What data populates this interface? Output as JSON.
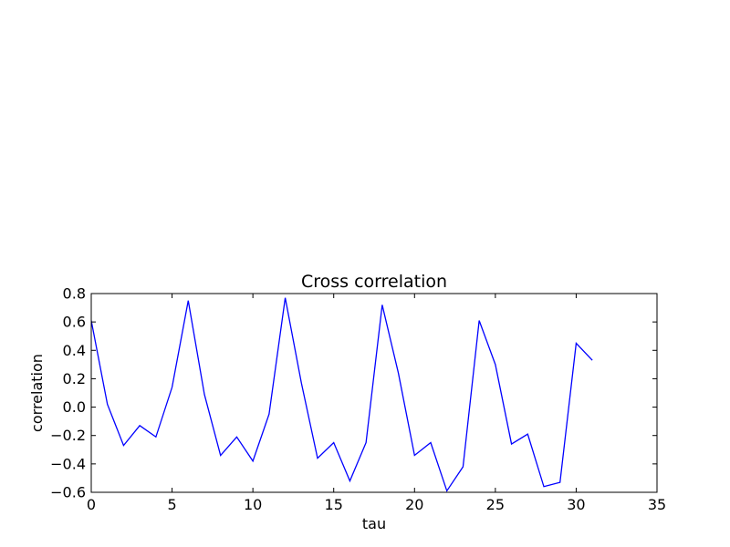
{
  "chart_data": {
    "type": "line",
    "title": "Cross correlation",
    "xlabel": "tau",
    "ylabel": "correlation",
    "xlim": [
      0,
      35
    ],
    "ylim": [
      -0.6,
      0.8
    ],
    "x_ticks": [
      0,
      5,
      10,
      15,
      20,
      25,
      30,
      35
    ],
    "x_tick_labels": [
      "0",
      "5",
      "10",
      "15",
      "20",
      "25",
      "30",
      "35"
    ],
    "y_ticks": [
      -0.6,
      -0.4,
      -0.2,
      0.0,
      0.2,
      0.4,
      0.6,
      0.8
    ],
    "y_tick_labels": [
      "−0.6",
      "−0.4",
      "−0.2",
      "0.0",
      "0.2",
      "0.4",
      "0.6",
      "0.8"
    ],
    "grid": false,
    "series": [
      {
        "color": "#0000ff",
        "x": [
          0,
          1,
          2,
          3,
          4,
          5,
          6,
          7,
          8,
          9,
          10,
          11,
          12,
          13,
          14,
          15,
          16,
          17,
          18,
          19,
          20,
          21,
          22,
          23,
          24,
          25,
          26,
          27,
          28,
          29,
          30,
          31
        ],
        "y": [
          0.61,
          0.02,
          -0.27,
          -0.13,
          -0.21,
          0.14,
          0.75,
          0.09,
          -0.34,
          -0.21,
          -0.38,
          -0.05,
          0.77,
          0.17,
          -0.36,
          -0.25,
          -0.52,
          -0.25,
          0.72,
          0.24,
          -0.34,
          -0.25,
          -0.59,
          -0.42,
          0.61,
          0.3,
          -0.26,
          -0.19,
          -0.56,
          -0.53,
          0.45,
          0.33
        ]
      }
    ]
  }
}
